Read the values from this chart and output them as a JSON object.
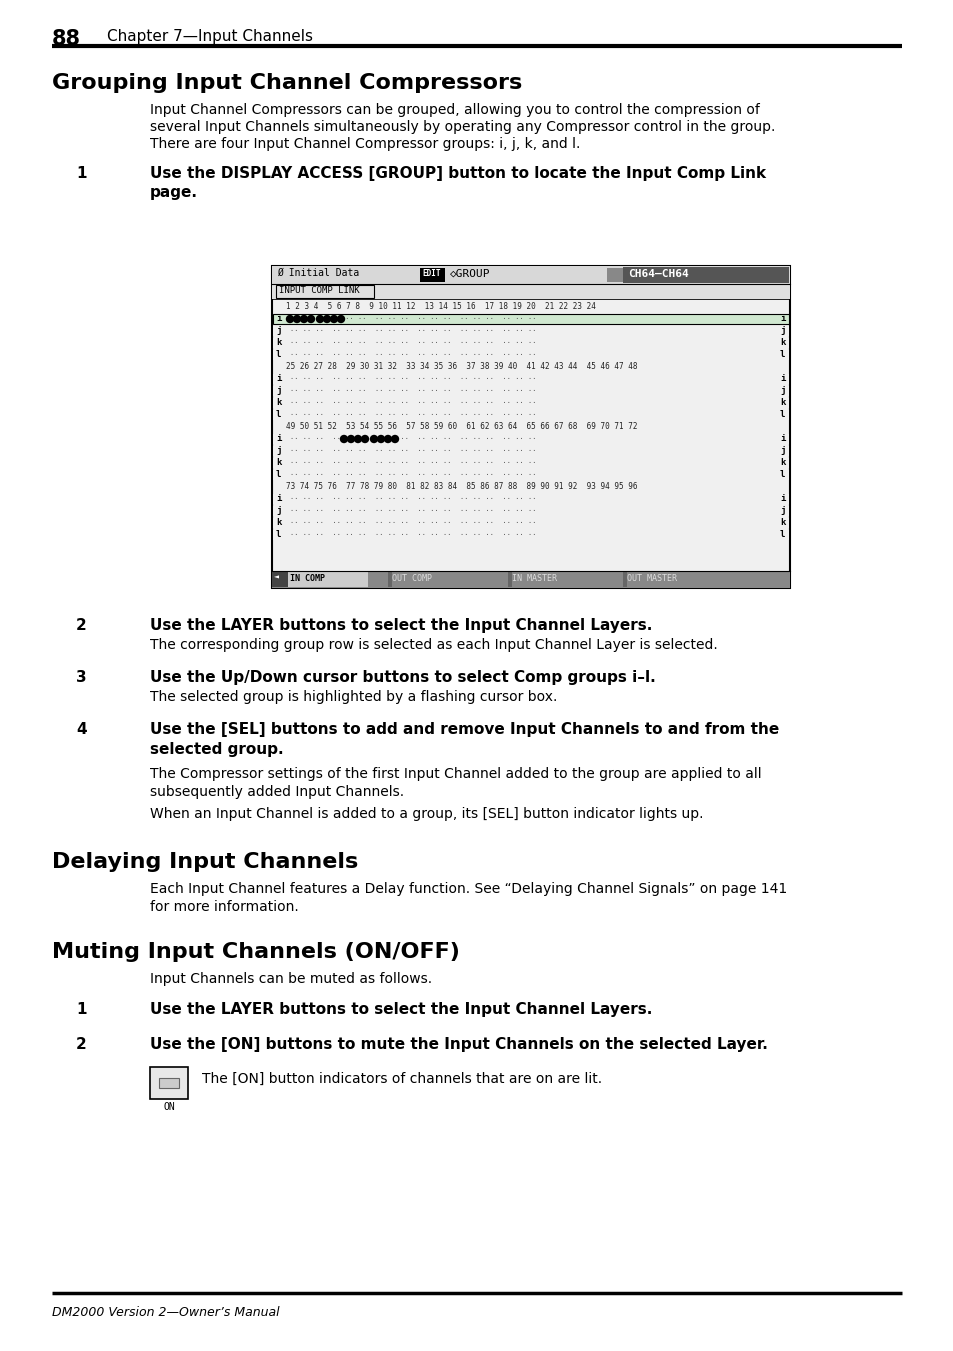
{
  "page_number": "88",
  "chapter": "Chapter 7—Input Channels",
  "section1_title": "Grouping Input Channel Compressors",
  "section1_body1": "Input Channel Compressors can be grouped, allowing you to control the compression of",
  "section1_body2": "several Input Channels simultaneously by operating any Compressor control in the group.",
  "section1_body3": "There are four Input Channel Compressor groups: i, j, k, and l.",
  "step1_bold1": "Use the DISPLAY ACCESS [GROUP] button to locate the Input Comp Link",
  "step1_bold2": "page.",
  "step2_bold": "Use the LAYER buttons to select the Input Channel Layers.",
  "step2_body": "The corresponding group row is selected as each Input Channel Layer is selected.",
  "step3_bold": "Use the Up/Down cursor buttons to select Comp groups i–l.",
  "step3_body": "The selected group is highlighted by a flashing cursor box.",
  "step4_bold1": "Use the [SEL] buttons to add and remove Input Channels to and from the",
  "step4_bold2": "selected group.",
  "step4_body1a": "The Compressor settings of the first Input Channel added to the group are applied to all",
  "step4_body1b": "subsequently added Input Channels.",
  "step4_body2": "When an Input Channel is added to a group, its [SEL] button indicator lights up.",
  "section2_title": "Delaying Input Channels",
  "section2_body1": "Each Input Channel features a Delay function. See “Delaying Channel Signals” on page 141",
  "section2_body2": "for more information.",
  "section3_title": "Muting Input Channels (ON/OFF)",
  "section3_body": "Input Channels can be muted as follows.",
  "mute_step1_bold": "Use the LAYER buttons to select the Input Channel Layers.",
  "mute_step2_bold": "Use the [ON] buttons to mute the Input Channels on the selected Layer.",
  "mute_step2_body": "The [ON] button indicators of channels that are on are lit.",
  "footer": "DM2000 Version 2—Owner’s Manual",
  "bg_color": "#ffffff"
}
